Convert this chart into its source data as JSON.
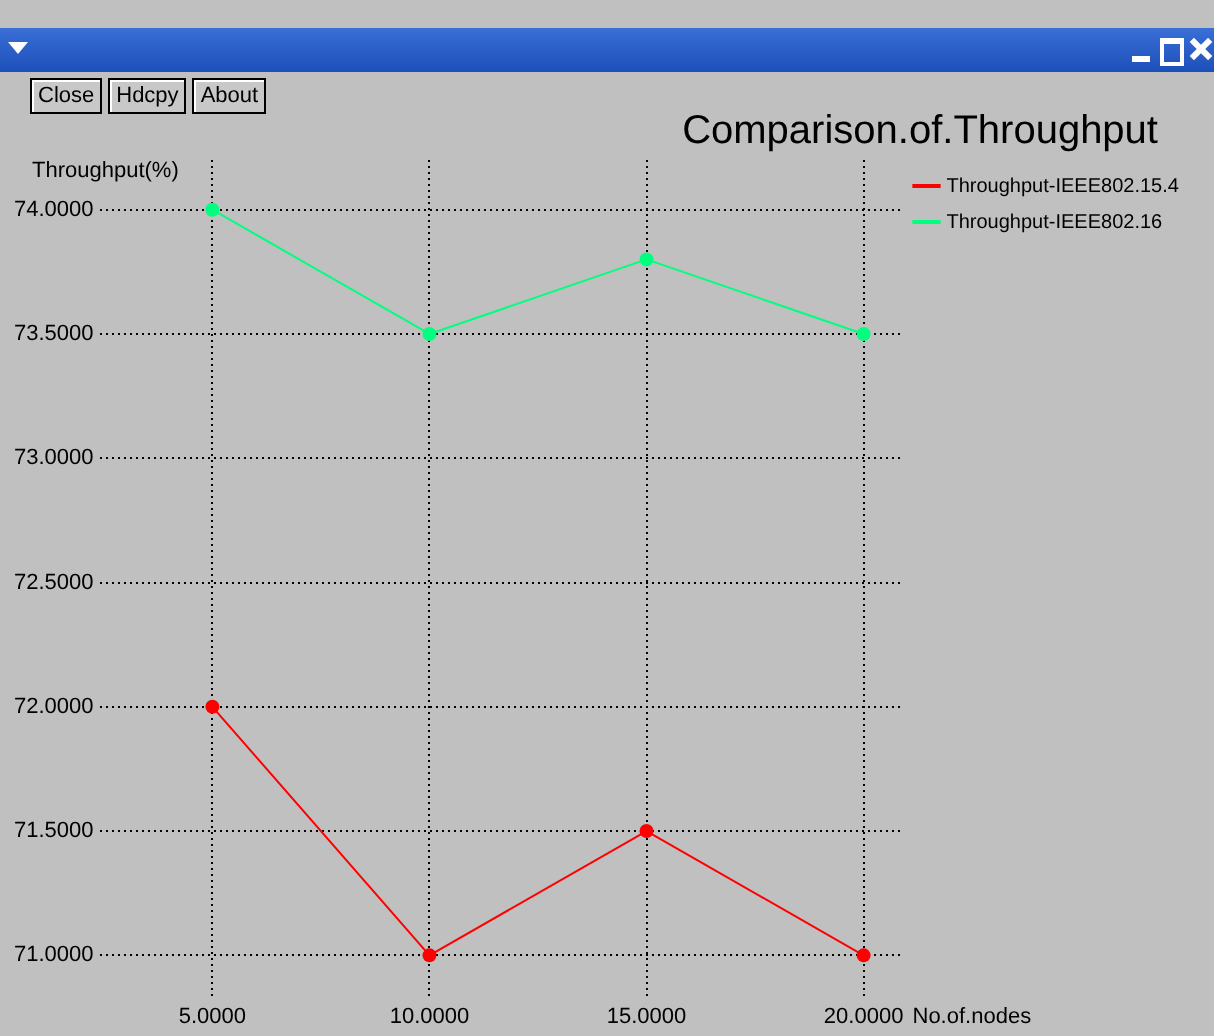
{
  "chart_data": {
    "type": "line",
    "title": "Comparison.of.Throughput",
    "xlabel": "No.of.nodes",
    "ylabel": "Throughput(%)",
    "annotations": [
      "Close",
      "Hdcpy",
      "About"
    ],
    "x": [
      5,
      10,
      15,
      20
    ],
    "series": [
      {
        "name": "Throughput-IEEE802.15.4",
        "color": "#ff0000",
        "values": [
          72,
          71,
          71.5,
          71
        ]
      },
      {
        "name": "Throughput-IEEE802.16",
        "color": "#00ff7f",
        "values": [
          74,
          73.5,
          73.8,
          73.5
        ]
      }
    ],
    "xlim": [
      2.4,
      20.85
    ],
    "ylim": [
      70.83,
      74.2
    ],
    "xticks": [
      {
        "value": 5,
        "label": "5.0000"
      },
      {
        "value": 10,
        "label": "10.0000"
      },
      {
        "value": 15,
        "label": "15.0000"
      },
      {
        "value": 20,
        "label": "20.0000"
      }
    ],
    "yticks": [
      {
        "value": 71,
        "label": "71.0000"
      },
      {
        "value": 71.5,
        "label": "71.5000"
      },
      {
        "value": 72,
        "label": "72.0000"
      },
      {
        "value": 72.5,
        "label": "72.5000"
      },
      {
        "value": 73,
        "label": "73.0000"
      },
      {
        "value": 73.5,
        "label": "73.5000"
      },
      {
        "value": 74,
        "label": "74.0000"
      }
    ],
    "grid": true,
    "legend": "top right",
    "marker": "circle",
    "line_style": "solid"
  }
}
